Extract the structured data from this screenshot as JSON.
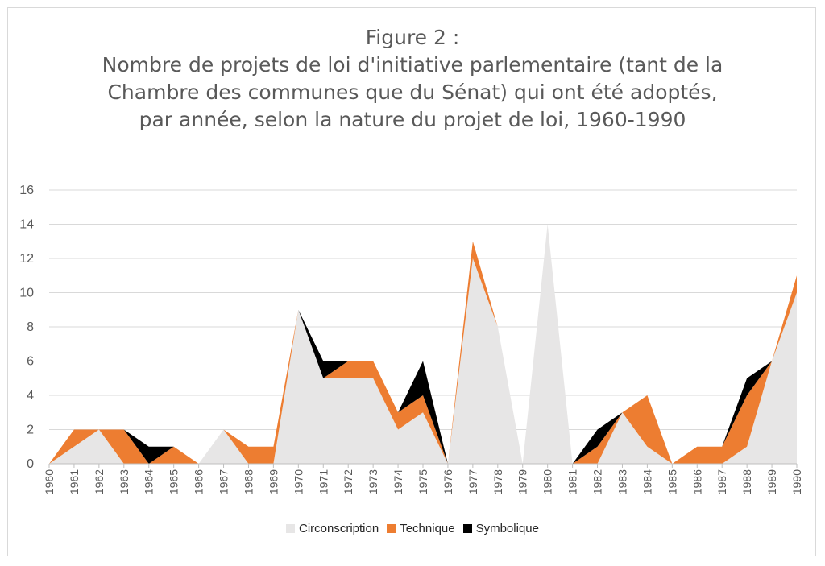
{
  "title": {
    "lines": [
      "Figure 2 :",
      "Nombre de projets de loi d'initiative parlementaire (tant de la",
      "Chambre des communes que du Sénat) qui ont été adoptés,",
      "par année, selon la nature du projet de loi, 1960-1990"
    ]
  },
  "legend": {
    "items": [
      {
        "label": "Circonscription",
        "color": "#e7e6e6"
      },
      {
        "label": "Technique",
        "color": "#ed7d31"
      },
      {
        "label": "Symbolique",
        "color": "#000000"
      }
    ]
  },
  "chart_data": {
    "type": "area",
    "stacked": true,
    "categories": [
      "1960",
      "1961",
      "1962",
      "1963",
      "1964",
      "1965",
      "1966",
      "1967",
      "1968",
      "1969",
      "1970",
      "1971",
      "1972",
      "1973",
      "1974",
      "1975",
      "1976",
      "1977",
      "1978",
      "1979",
      "1980",
      "1981",
      "1982",
      "1983",
      "1984",
      "1985",
      "1986",
      "1987",
      "1988",
      "1989",
      "1990"
    ],
    "series": [
      {
        "name": "Circonscription",
        "color": "#e7e6e6",
        "values": [
          0,
          1,
          2,
          0,
          0,
          0,
          0,
          2,
          0,
          0,
          9,
          5,
          5,
          5,
          2,
          3,
          0,
          12,
          8,
          0,
          14,
          0,
          0,
          3,
          1,
          0,
          0,
          0,
          1,
          6,
          10
        ]
      },
      {
        "name": "Technique",
        "color": "#ed7d31",
        "values": [
          0,
          1,
          0,
          2,
          0,
          1,
          0,
          0,
          1,
          1,
          0,
          0,
          1,
          1,
          1,
          1,
          0,
          1,
          0,
          0,
          0,
          0,
          1,
          0,
          3,
          0,
          1,
          1,
          3,
          0,
          1
        ]
      },
      {
        "name": "Symbolique",
        "color": "#000000",
        "values": [
          0,
          0,
          0,
          0,
          1,
          0,
          0,
          0,
          0,
          0,
          0,
          1,
          0,
          0,
          0,
          2,
          0,
          0,
          0,
          0,
          0,
          0,
          1,
          0,
          0,
          0,
          0,
          0,
          1,
          0,
          0
        ]
      }
    ],
    "ylim": [
      0,
      16
    ],
    "yticks": [
      0,
      2,
      4,
      6,
      8,
      10,
      12,
      14,
      16
    ],
    "grid": true,
    "legend_position": "bottom",
    "xlabel": "",
    "ylabel": ""
  }
}
